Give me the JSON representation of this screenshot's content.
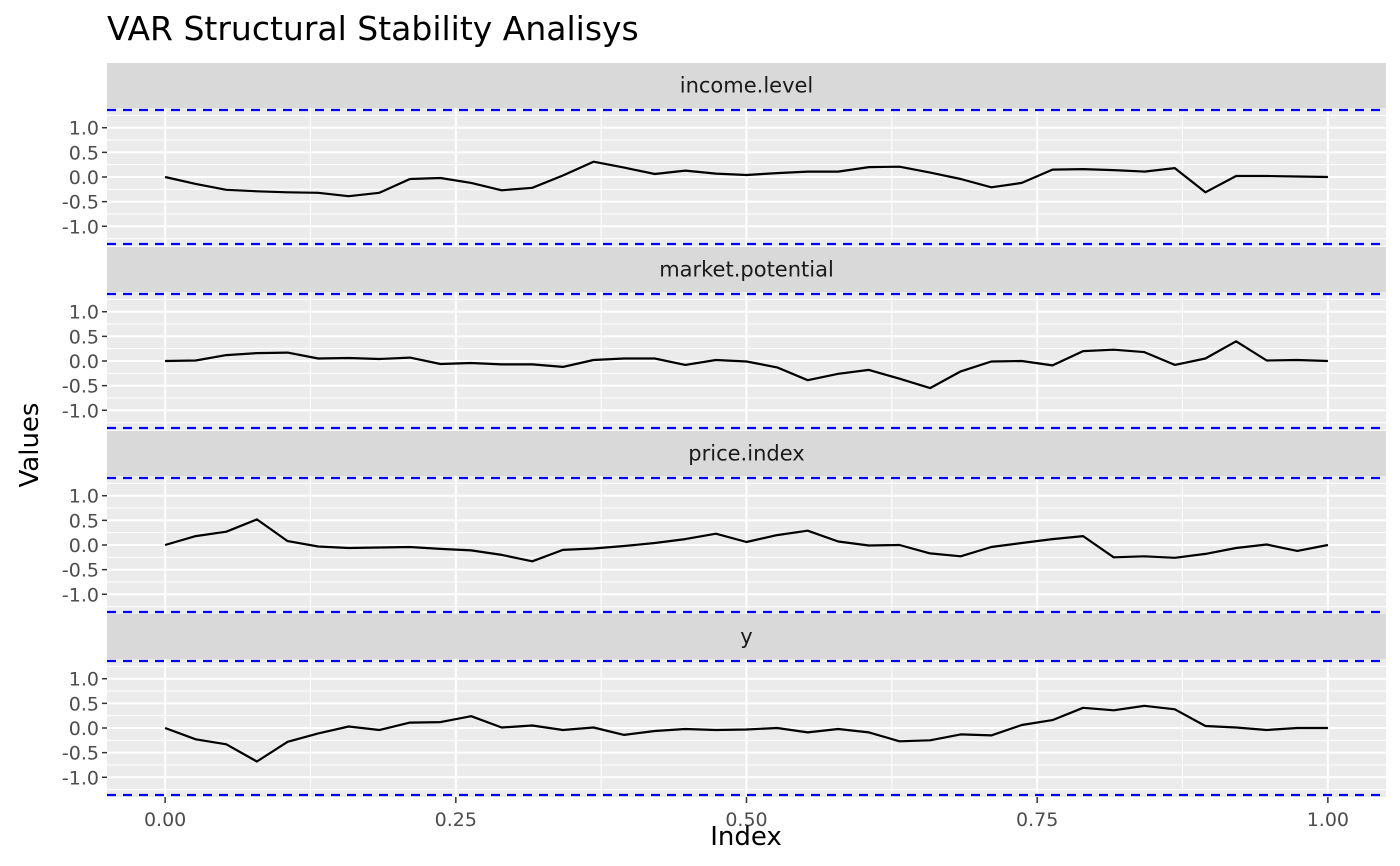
{
  "chart_data": {
    "type": "line",
    "title": "VAR Structural Stability Analisys",
    "xlabel": "Index",
    "ylabel": "Values",
    "xlim": [
      -0.05,
      1.05
    ],
    "ylim": [
      -1.4,
      1.4
    ],
    "x_ticks": [
      0,
      0.25,
      0.5,
      0.75,
      1
    ],
    "x_tick_labels": [
      "0.00",
      "0.25",
      "0.50",
      "0.75",
      "1.00"
    ],
    "y_ticks": [
      1.0,
      0.5,
      0.0,
      -0.5,
      -1.0
    ],
    "y_tick_labels": [
      "1.0",
      "0.5",
      "0.0",
      "-0.5",
      "-1.0"
    ],
    "boundary": 1.36,
    "colors": {
      "line": "#000000",
      "boundary": "#0000ff",
      "panel_bg": "#ebebeb",
      "strip_bg": "#d9d9d9",
      "grid": "#ffffff"
    },
    "x": [
      0,
      0.0263,
      0.0526,
      0.0789,
      0.1053,
      0.1316,
      0.1579,
      0.1842,
      0.2105,
      0.2368,
      0.2632,
      0.2895,
      0.3158,
      0.3421,
      0.3684,
      0.3947,
      0.4211,
      0.4474,
      0.4737,
      0.5,
      0.5263,
      0.5526,
      0.5789,
      0.6053,
      0.6316,
      0.6579,
      0.6842,
      0.7105,
      0.7368,
      0.7632,
      0.7895,
      0.8158,
      0.8421,
      0.8684,
      0.8947,
      0.9211,
      0.9474,
      0.9737,
      1.0
    ],
    "series": [
      {
        "name": "income.level",
        "values": [
          0,
          -0.14,
          -0.26,
          -0.29,
          -0.31,
          -0.32,
          -0.39,
          -0.32,
          -0.04,
          -0.02,
          -0.12,
          -0.27,
          -0.22,
          0.03,
          0.31,
          0.19,
          0.06,
          0.13,
          0.07,
          0.04,
          0.08,
          0.11,
          0.11,
          0.2,
          0.21,
          0.09,
          -0.04,
          -0.21,
          -0.12,
          0.15,
          0.16,
          0.14,
          0.11,
          0.18,
          -0.31,
          0.02,
          0.02,
          0.01,
          0
        ]
      },
      {
        "name": "market.potential",
        "values": [
          0,
          0.01,
          0.12,
          0.16,
          0.17,
          0.05,
          0.06,
          0.04,
          0.07,
          -0.06,
          -0.04,
          -0.07,
          -0.07,
          -0.12,
          0.02,
          0.05,
          0.05,
          -0.08,
          0.02,
          -0.01,
          -0.13,
          -0.39,
          -0.26,
          -0.18,
          -0.36,
          -0.55,
          -0.21,
          -0.01,
          0.0,
          -0.09,
          0.2,
          0.23,
          0.18,
          -0.08,
          0.05,
          0.4,
          0.01,
          0.02,
          0
        ]
      },
      {
        "name": "price.index",
        "values": [
          0,
          0.18,
          0.27,
          0.52,
          0.08,
          -0.03,
          -0.06,
          -0.05,
          -0.04,
          -0.08,
          -0.11,
          -0.2,
          -0.33,
          -0.1,
          -0.07,
          -0.02,
          0.04,
          0.12,
          0.23,
          0.06,
          0.2,
          0.29,
          0.07,
          -0.01,
          0.0,
          -0.17,
          -0.23,
          -0.04,
          0.04,
          0.12,
          0.18,
          -0.25,
          -0.23,
          -0.26,
          -0.18,
          -0.06,
          0.01,
          -0.12,
          0
        ]
      },
      {
        "name": "y",
        "values": [
          0,
          -0.23,
          -0.33,
          -0.68,
          -0.28,
          -0.11,
          0.03,
          -0.04,
          0.11,
          0.12,
          0.24,
          0.01,
          0.05,
          -0.04,
          0.01,
          -0.14,
          -0.06,
          -0.02,
          -0.04,
          -0.03,
          0.0,
          -0.09,
          -0.02,
          -0.09,
          -0.27,
          -0.25,
          -0.13,
          -0.15,
          0.06,
          0.16,
          0.41,
          0.36,
          0.45,
          0.38,
          0.04,
          0.01,
          -0.04,
          0.0,
          0
        ]
      }
    ]
  }
}
